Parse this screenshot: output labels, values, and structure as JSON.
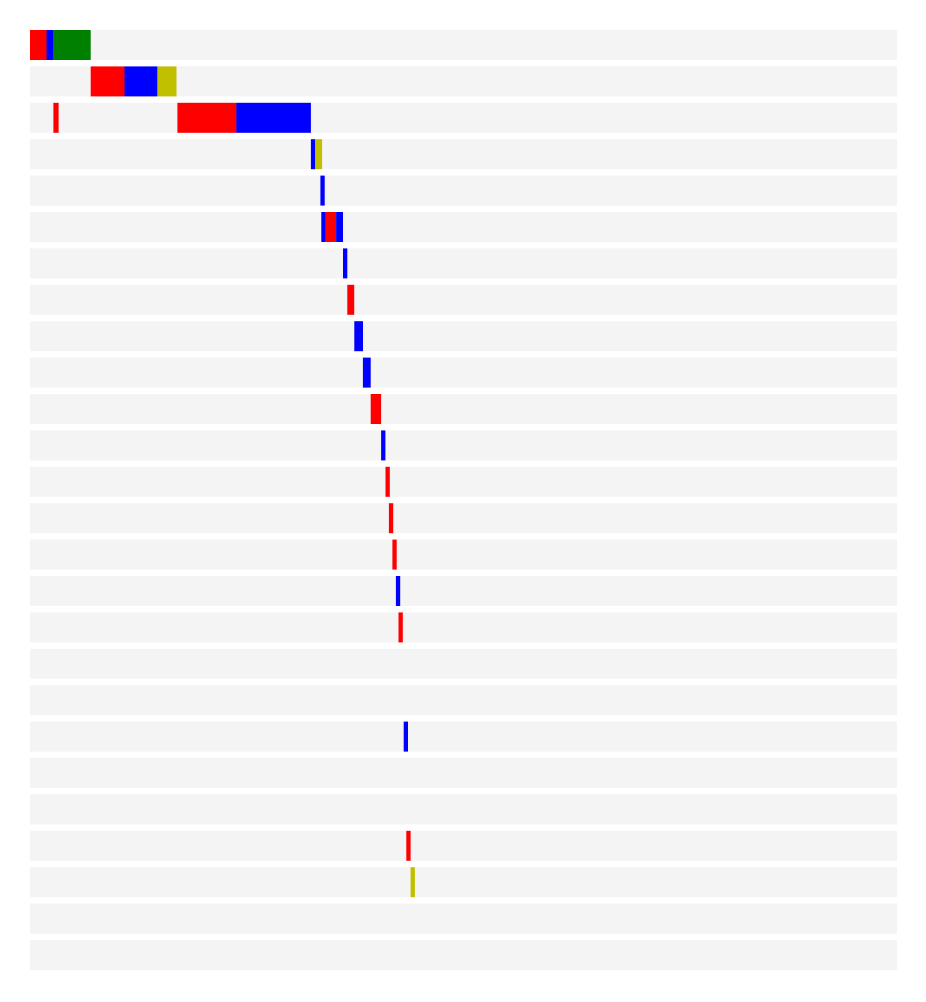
{
  "colors": {
    "track": "#f4f4f4",
    "red": "#ff0000",
    "blue": "#0000ff",
    "green": "#008000",
    "yellow": "#c0c000"
  },
  "chart_data": {
    "type": "bar",
    "subtype": "timeline-waterfall",
    "title": "",
    "xlabel": "",
    "ylabel": "",
    "grid": false,
    "legend": "none",
    "xlim": [
      0,
      1000
    ],
    "row_count": 26,
    "segments": [
      {
        "row": 0,
        "start": 0,
        "end": 19,
        "color": "red"
      },
      {
        "row": 0,
        "start": 19,
        "end": 27,
        "color": "blue"
      },
      {
        "row": 0,
        "start": 27,
        "end": 70,
        "color": "green"
      },
      {
        "row": 1,
        "start": 70,
        "end": 109,
        "color": "red"
      },
      {
        "row": 1,
        "start": 109,
        "end": 147,
        "color": "blue"
      },
      {
        "row": 1,
        "start": 147,
        "end": 169,
        "color": "yellow"
      },
      {
        "row": 2,
        "start": 27,
        "end": 33,
        "color": "red"
      },
      {
        "row": 2,
        "start": 170,
        "end": 238,
        "color": "red"
      },
      {
        "row": 2,
        "start": 238,
        "end": 324,
        "color": "blue"
      },
      {
        "row": 3,
        "start": 324,
        "end": 329,
        "color": "blue"
      },
      {
        "row": 3,
        "start": 329,
        "end": 337,
        "color": "yellow"
      },
      {
        "row": 4,
        "start": 335,
        "end": 340,
        "color": "blue"
      },
      {
        "row": 5,
        "start": 336,
        "end": 341,
        "color": "blue"
      },
      {
        "row": 5,
        "start": 341,
        "end": 353,
        "color": "red"
      },
      {
        "row": 5,
        "start": 353,
        "end": 361,
        "color": "blue"
      },
      {
        "row": 6,
        "start": 361,
        "end": 366,
        "color": "blue"
      },
      {
        "row": 7,
        "start": 366,
        "end": 374,
        "color": "red"
      },
      {
        "row": 8,
        "start": 374,
        "end": 384,
        "color": "blue"
      },
      {
        "row": 9,
        "start": 384,
        "end": 393,
        "color": "blue"
      },
      {
        "row": 10,
        "start": 393,
        "end": 405,
        "color": "red"
      },
      {
        "row": 11,
        "start": 405,
        "end": 410,
        "color": "blue"
      },
      {
        "row": 12,
        "start": 410,
        "end": 415,
        "color": "red"
      },
      {
        "row": 13,
        "start": 414,
        "end": 419,
        "color": "red"
      },
      {
        "row": 14,
        "start": 418,
        "end": 423,
        "color": "red"
      },
      {
        "row": 15,
        "start": 422,
        "end": 427,
        "color": "blue"
      },
      {
        "row": 16,
        "start": 425,
        "end": 430,
        "color": "red"
      },
      {
        "row": 19,
        "start": 431,
        "end": 436,
        "color": "blue"
      },
      {
        "row": 22,
        "start": 434,
        "end": 439,
        "color": "red"
      },
      {
        "row": 23,
        "start": 439,
        "end": 444,
        "color": "yellow"
      }
    ]
  }
}
